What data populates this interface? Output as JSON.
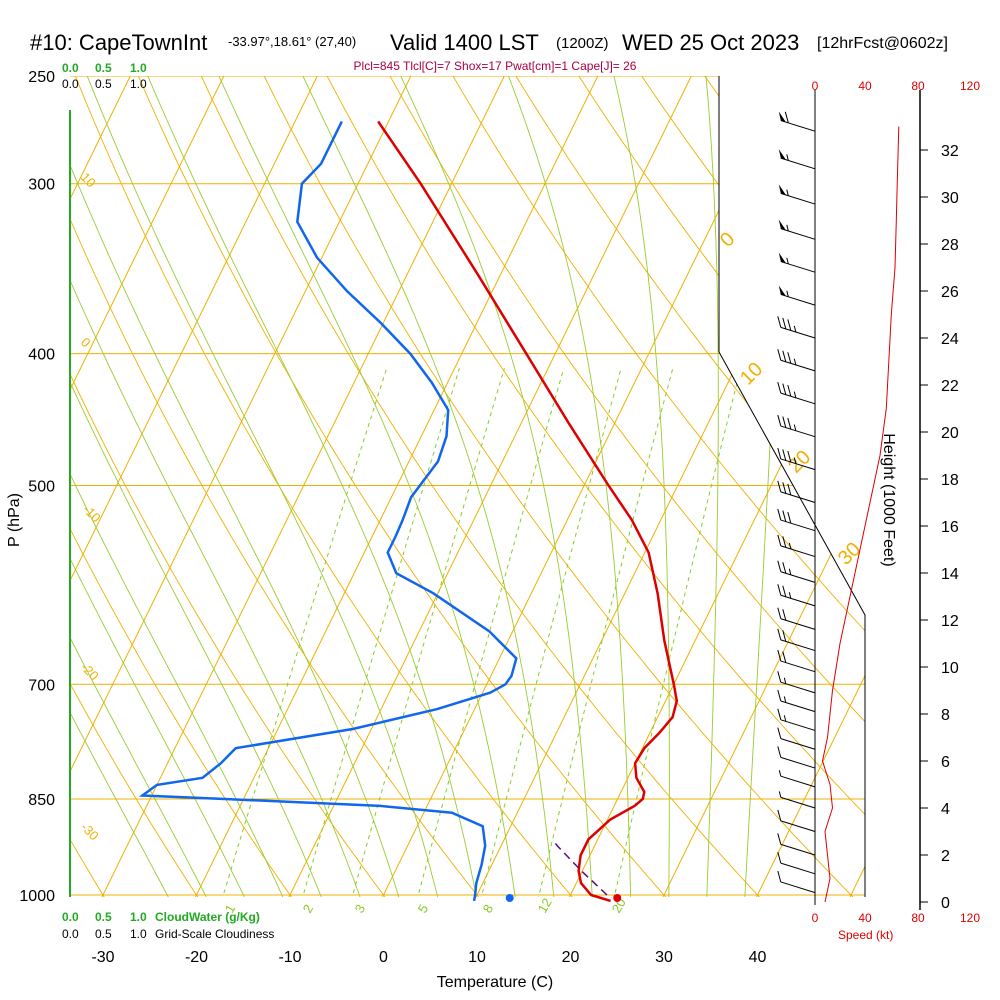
{
  "header": {
    "station": "#10: CapeTownInt",
    "coords": "-33.97°,18.61° (27,40)",
    "valid": "Valid 1400 LST",
    "zulu": "(1200Z)",
    "date": "WED 25 Oct 2023",
    "forecast": "[12hrFcst@0602z]",
    "indices": "Plcl=845 Tlcl[C]=7 Shox=17 Pwat[cm]=1 Cape[J]= 26"
  },
  "colors": {
    "temperature": "#dd0000",
    "dewpoint": "#1166ee",
    "parcel": "#551177",
    "isotherm_isobar": "#f0b000",
    "dry_adiabat": "#f0b000",
    "moist_adiabat": "#99cc33",
    "mixing_ratio": "#88cc22",
    "cloud_scale": "#22aa22",
    "wind_speed": "#dd0000",
    "indices_text": "#aa0044"
  },
  "chart_data": {
    "type": "skew-t",
    "xlabel": "Temperature (C)",
    "ylabel": "P (hPa)",
    "right_label": "Height (1000 Feet)",
    "x_ticks": [
      "-30",
      "-20",
      "-10",
      "0",
      "10",
      "20",
      "30",
      "40"
    ],
    "x_tick_values": [
      -30,
      -20,
      -10,
      0,
      10,
      20,
      30,
      40
    ],
    "pressure_ticks": [
      "250",
      "300",
      "400",
      "500",
      "700",
      "850",
      "1000"
    ],
    "pressure_values": [
      250,
      300,
      400,
      500,
      700,
      850,
      1000
    ],
    "height_ticks": [
      "0",
      "2",
      "4",
      "6",
      "8",
      "10",
      "12",
      "14",
      "16",
      "18",
      "20",
      "22",
      "24",
      "26",
      "28",
      "30",
      "32"
    ],
    "cloud_scale_top_green": [
      "0.0",
      "0.5",
      "1.0"
    ],
    "cloud_scale_top_black": [
      "0.0",
      "0.5",
      "1.0"
    ],
    "cloud_scale_bottom_green": [
      "0.0",
      "0.5",
      "1.0"
    ],
    "cloud_scale_bottom_black": [
      "0.0",
      "0.5",
      "1.0"
    ],
    "cloud_water_label": "CloudWater (g/Kg)",
    "cloudiness_label": "Grid-Scale Cloudiness",
    "speed_ticks": [
      "0",
      "40",
      "80",
      "120"
    ],
    "speed_label": "Speed (kt)",
    "dry_adiabat_labels": [
      "10",
      "0",
      "-10",
      "-20",
      "-30"
    ],
    "moist_adiabat_labels": [
      "0",
      "10",
      "20",
      "30"
    ],
    "mixing_ratio_labels": [
      "1",
      "2",
      "3",
      "5",
      "8",
      "12",
      "20"
    ],
    "temperature_profile": [
      {
        "p": 1010,
        "t": 24.6
      },
      {
        "p": 1000,
        "t": 22.2
      },
      {
        "p": 980,
        "t": 20.5
      },
      {
        "p": 960,
        "t": 19.6
      },
      {
        "p": 935,
        "t": 19.0
      },
      {
        "p": 910,
        "t": 19.0
      },
      {
        "p": 880,
        "t": 20.3
      },
      {
        "p": 860,
        "t": 22.2
      },
      {
        "p": 850,
        "t": 22.7
      },
      {
        "p": 840,
        "t": 22.5
      },
      {
        "p": 820,
        "t": 20.9
      },
      {
        "p": 800,
        "t": 20.0
      },
      {
        "p": 780,
        "t": 20.2
      },
      {
        "p": 760,
        "t": 21.0
      },
      {
        "p": 740,
        "t": 21.6
      },
      {
        "p": 720,
        "t": 21.2
      },
      {
        "p": 700,
        "t": 20.0
      },
      {
        "p": 650,
        "t": 16.7
      },
      {
        "p": 600,
        "t": 13.5
      },
      {
        "p": 560,
        "t": 10.4
      },
      {
        "p": 530,
        "t": 6.9
      },
      {
        "p": 500,
        "t": 2.6
      },
      {
        "p": 450,
        "t": -4.9
      },
      {
        "p": 400,
        "t": -13.1
      },
      {
        "p": 350,
        "t": -22.4
      },
      {
        "p": 300,
        "t": -33.3
      },
      {
        "p": 270,
        "t": -41.1
      }
    ],
    "dewpoint_profile": [
      {
        "p": 1010,
        "t": 10.0
      },
      {
        "p": 1000,
        "t": 9.8
      },
      {
        "p": 980,
        "t": 9.3
      },
      {
        "p": 950,
        "t": 8.9
      },
      {
        "p": 920,
        "t": 8.3
      },
      {
        "p": 890,
        "t": 7.0
      },
      {
        "p": 870,
        "t": 3.0
      },
      {
        "p": 860,
        "t": -5.0
      },
      {
        "p": 850,
        "t": -22.0
      },
      {
        "p": 845,
        "t": -31.0
      },
      {
        "p": 830,
        "t": -30.0
      },
      {
        "p": 820,
        "t": -25.5
      },
      {
        "p": 800,
        "t": -24.3
      },
      {
        "p": 780,
        "t": -23.5
      },
      {
        "p": 755,
        "t": -12.0
      },
      {
        "p": 730,
        "t": -4.0
      },
      {
        "p": 710,
        "t": 0.8
      },
      {
        "p": 700,
        "t": 2.0
      },
      {
        "p": 690,
        "t": 2.2
      },
      {
        "p": 670,
        "t": 1.8
      },
      {
        "p": 640,
        "t": -2.5
      },
      {
        "p": 600,
        "t": -10.5
      },
      {
        "p": 580,
        "t": -15.5
      },
      {
        "p": 560,
        "t": -17.5
      },
      {
        "p": 545,
        "t": -17.5
      },
      {
        "p": 530,
        "t": -17.6
      },
      {
        "p": 510,
        "t": -17.9
      },
      {
        "p": 480,
        "t": -16.9
      },
      {
        "p": 460,
        "t": -17.3
      },
      {
        "p": 440,
        "t": -18.5
      },
      {
        "p": 420,
        "t": -21.7
      },
      {
        "p": 400,
        "t": -25.5
      },
      {
        "p": 380,
        "t": -30.2
      },
      {
        "p": 360,
        "t": -35.5
      },
      {
        "p": 340,
        "t": -40.5
      },
      {
        "p": 320,
        "t": -44.5
      },
      {
        "p": 300,
        "t": -46.0
      },
      {
        "p": 290,
        "t": -45.0
      },
      {
        "p": 270,
        "t": -45.0
      }
    ],
    "parcel_path": [
      {
        "p": 1000,
        "t": 23.9
      },
      {
        "p": 960,
        "t": 19.9
      },
      {
        "p": 920,
        "t": 16.0
      },
      {
        "p": 912,
        "t": 15.3
      }
    ],
    "surface_temperature": 25.0,
    "surface_dewpoint": 13.5,
    "wind_speed_profile": [
      {
        "h": 0,
        "s": 8
      },
      {
        "h": 1,
        "s": 12
      },
      {
        "h": 2,
        "s": 10
      },
      {
        "h": 3,
        "s": 8
      },
      {
        "h": 4,
        "s": 14
      },
      {
        "h": 5,
        "s": 12
      },
      {
        "h": 6,
        "s": 6
      },
      {
        "h": 7,
        "s": 10
      },
      {
        "h": 9,
        "s": 14
      },
      {
        "h": 11,
        "s": 20
      },
      {
        "h": 13,
        "s": 28
      },
      {
        "h": 15,
        "s": 36
      },
      {
        "h": 17,
        "s": 44
      },
      {
        "h": 19,
        "s": 52
      },
      {
        "h": 21,
        "s": 57
      },
      {
        "h": 23,
        "s": 59
      },
      {
        "h": 25,
        "s": 61
      },
      {
        "h": 27,
        "s": 64
      },
      {
        "h": 29,
        "s": 65
      },
      {
        "h": 31,
        "s": 66
      },
      {
        "h": 33,
        "s": 67
      }
    ],
    "wind_barbs": [
      {
        "h": 32.8,
        "s": 60
      },
      {
        "h": 31.2,
        "s": 55
      },
      {
        "h": 29.7,
        "s": 55
      },
      {
        "h": 28.2,
        "s": 55
      },
      {
        "h": 26.8,
        "s": 55
      },
      {
        "h": 25.4,
        "s": 55
      },
      {
        "h": 24.0,
        "s": 35
      },
      {
        "h": 22.6,
        "s": 35
      },
      {
        "h": 21.2,
        "s": 35
      },
      {
        "h": 19.8,
        "s": 35
      },
      {
        "h": 18.4,
        "s": 35
      },
      {
        "h": 17.0,
        "s": 30
      },
      {
        "h": 15.8,
        "s": 30
      },
      {
        "h": 14.7,
        "s": 25
      },
      {
        "h": 13.6,
        "s": 25
      },
      {
        "h": 12.6,
        "s": 25
      },
      {
        "h": 11.6,
        "s": 20
      },
      {
        "h": 10.7,
        "s": 20
      },
      {
        "h": 9.8,
        "s": 20
      },
      {
        "h": 8.9,
        "s": 15
      },
      {
        "h": 8.1,
        "s": 15
      },
      {
        "h": 7.3,
        "s": 15
      },
      {
        "h": 6.5,
        "s": 10
      },
      {
        "h": 5.7,
        "s": 10
      },
      {
        "h": 4.9,
        "s": 5
      },
      {
        "h": 4.0,
        "s": 5
      },
      {
        "h": 3.0,
        "s": 10
      },
      {
        "h": 2.0,
        "s": 10
      },
      {
        "h": 1.2,
        "s": 10
      },
      {
        "h": 0.4,
        "s": 10
      }
    ]
  }
}
